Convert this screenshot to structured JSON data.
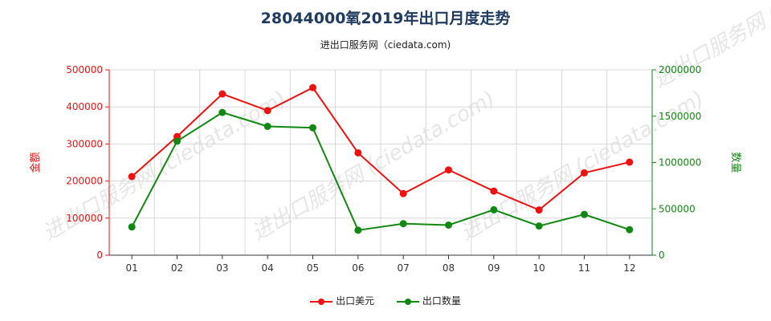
{
  "title": "28044000氧2019年出口月度走势",
  "subtitle": "进出口服务网（ciedata.com)",
  "watermark": "进出口服务网 (ciedata.com)",
  "chart_data": {
    "type": "line",
    "x": [
      "01",
      "02",
      "03",
      "04",
      "05",
      "06",
      "07",
      "08",
      "09",
      "10",
      "11",
      "12"
    ],
    "y_left_label": "金额",
    "y_right_label": "数量",
    "y_left_ticks": [
      "0",
      "100000",
      "200000",
      "300000",
      "400000",
      "500000"
    ],
    "y_right_ticks": [
      "0",
      "500000",
      "1000000",
      "1500000",
      "2000000"
    ],
    "y_left_lim": [
      0,
      500000
    ],
    "y_right_lim": [
      0,
      2000000
    ],
    "grid": true,
    "legend_position": "bottom",
    "series": [
      {
        "name": "出口美元",
        "axis": "left",
        "color": "#ee1111",
        "values": [
          212000,
          320000,
          435000,
          390000,
          452000,
          276000,
          166000,
          230000,
          173000,
          122000,
          222000,
          251000
        ]
      },
      {
        "name": "出口数量",
        "axis": "right",
        "color": "#118811",
        "values": [
          305000,
          1230000,
          1540000,
          1390000,
          1375000,
          270000,
          340000,
          325000,
          490000,
          315000,
          440000,
          275000
        ]
      }
    ]
  },
  "colors": {
    "left_axis": "#ee1111",
    "right_axis": "#118811",
    "grid": "#d8d8d8"
  }
}
